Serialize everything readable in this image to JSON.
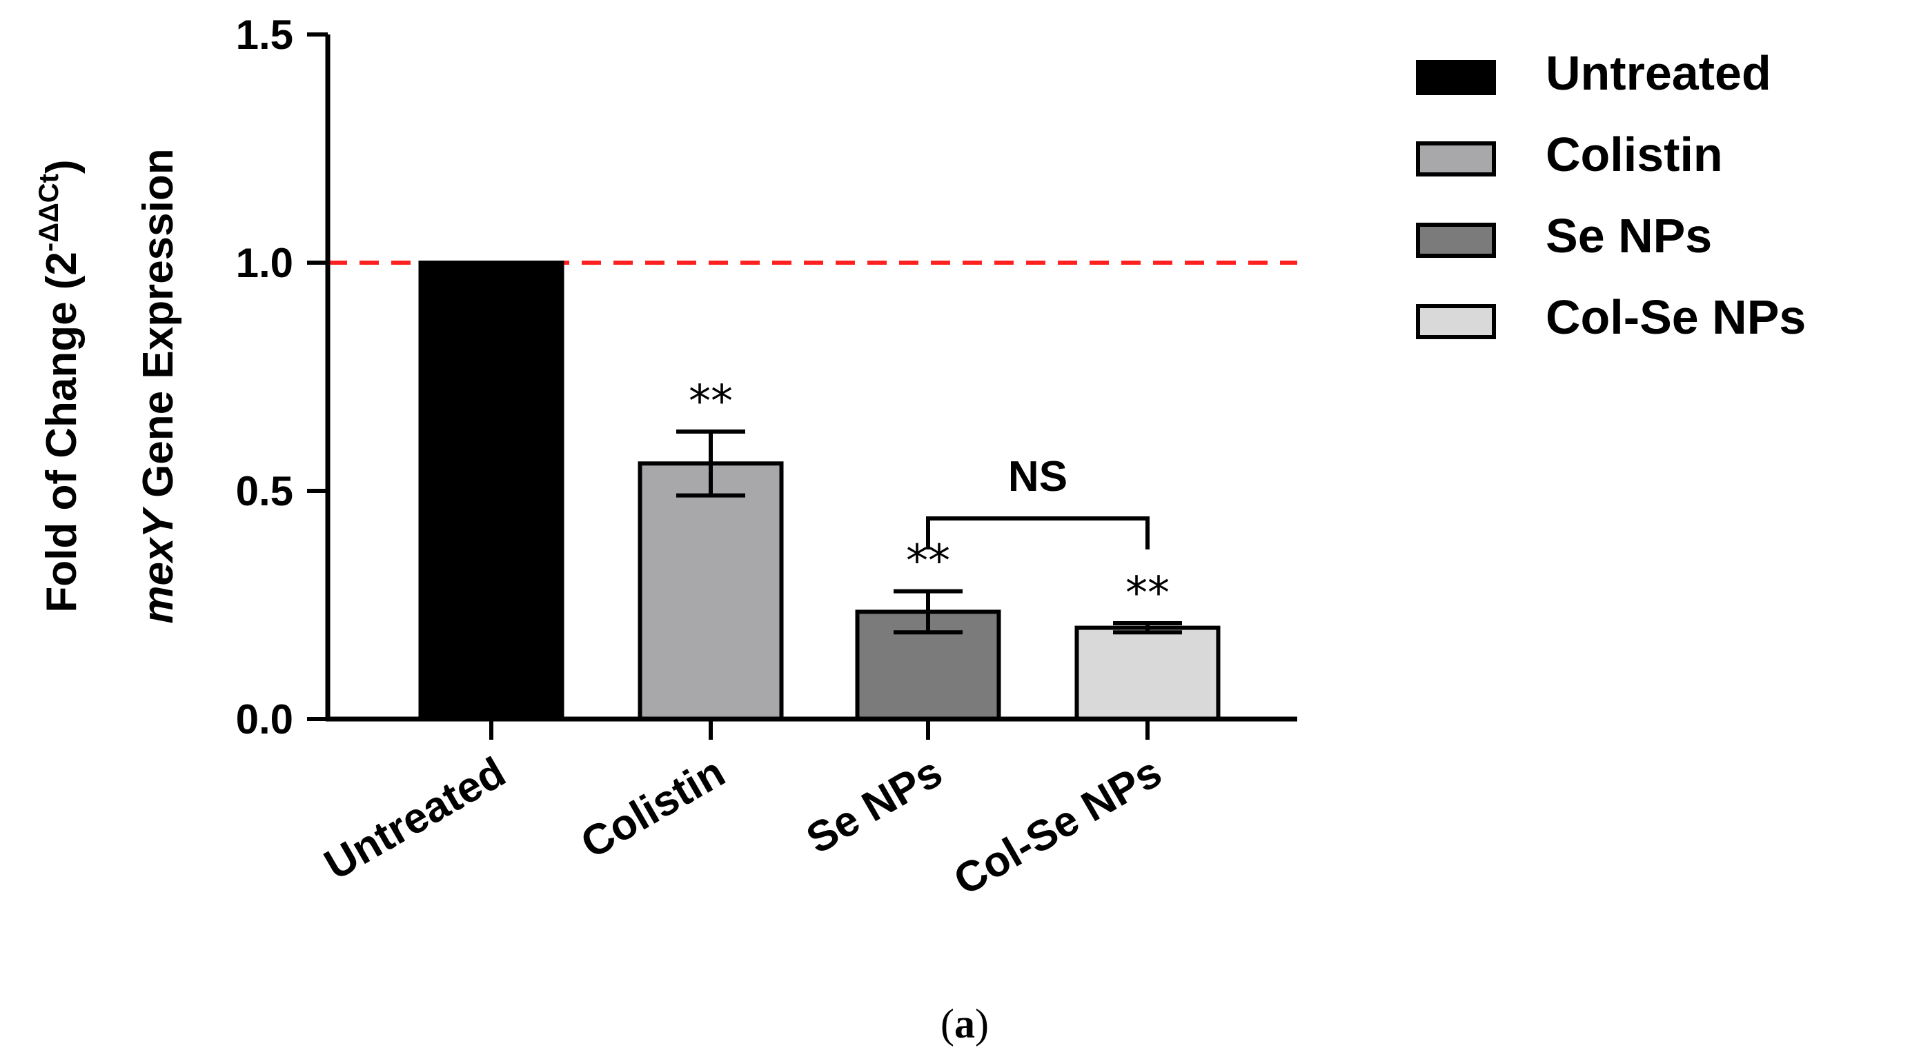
{
  "chart_data": {
    "type": "bar",
    "categories": [
      "Untreated",
      "Colistin",
      "Se NPs",
      "Col-Se NPs"
    ],
    "values": [
      1.0,
      0.56,
      0.235,
      0.2
    ],
    "errors": [
      0,
      0.07,
      0.045,
      0.01
    ],
    "colors": [
      "#000000",
      "#a8a8ab",
      "#7b7b7b",
      "#d9d9d9"
    ],
    "significance": [
      "",
      "**",
      "**",
      "**"
    ],
    "comparison": {
      "label": "NS",
      "from": 2,
      "to": 3
    },
    "reference_line": {
      "y": 1.0,
      "color": "#ff2020",
      "style": "dashed"
    },
    "ylim": [
      0,
      1.5
    ],
    "yticks": [
      "0.0",
      "0.5",
      "1.0",
      "1.5"
    ],
    "ylabel": {
      "line1_prefix": "Fold of Change (2",
      "line1_sup": "-ΔΔCt",
      "line1_suffix": ")",
      "line2_gene": "mexY",
      "line2_rest": " Gene Expression"
    },
    "legend": {
      "position": "top-right",
      "entries": [
        "Untreated",
        "Colistin",
        "Se NPs",
        "Col-Se NPs"
      ]
    },
    "caption": "(a)",
    "caption_bold": "a"
  }
}
